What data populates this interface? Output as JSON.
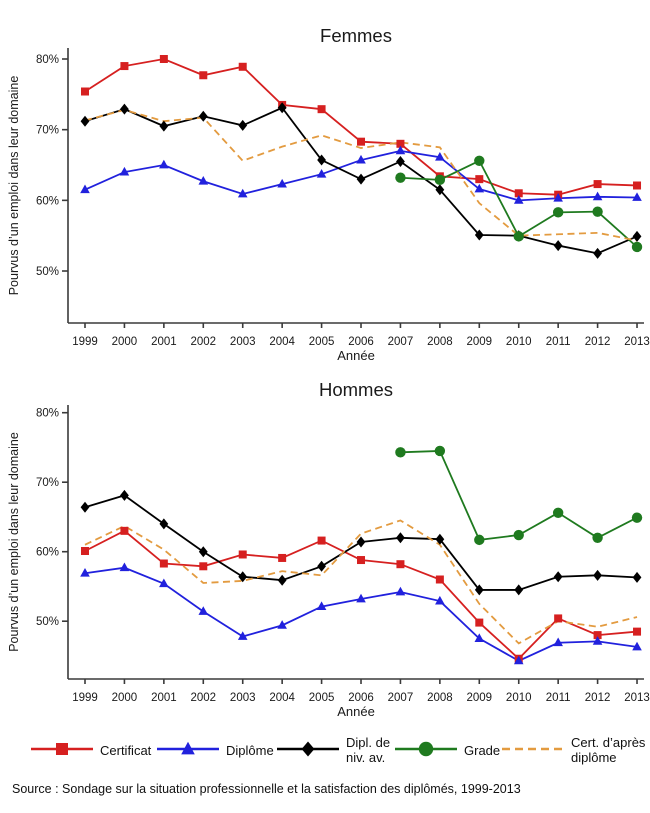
{
  "page": {
    "source_note": "Source : Sondage sur la situation professionnelle et la satisfaction des diplômés, 1999-2013",
    "stray_mark": "’"
  },
  "legend": {
    "items": [
      {
        "label": "Certificat",
        "color": "#d62020",
        "marker": "square",
        "dash": false
      },
      {
        "label": "Diplôme",
        "color": "#2121dd",
        "marker": "triangle",
        "dash": false
      },
      {
        "label": "Dipl. de niv. av.",
        "color": "#000000",
        "marker": "diamond",
        "dash": false
      },
      {
        "label": "Grade",
        "color": "#1f7a1f",
        "marker": "circle",
        "dash": false
      },
      {
        "label": "Cert. d’après diplôme",
        "color": "#e39b40",
        "marker": "none",
        "dash": true
      }
    ]
  },
  "chart_data": [
    {
      "type": "line",
      "title": "Femmes",
      "xlabel": "Année",
      "ylabel": "Pourvus d’un emploi dans leur domaine",
      "categories": [
        "1999",
        "2000",
        "2001",
        "2002",
        "2003",
        "2004",
        "2005",
        "2006",
        "2007",
        "2008",
        "2009",
        "2010",
        "2011",
        "2012",
        "2013"
      ],
      "ylim": [
        42.5,
        81.5
      ],
      "yticks": [
        {
          "value": 50,
          "label": "50%"
        },
        {
          "value": 60,
          "label": "60%"
        },
        {
          "value": 70,
          "label": "70%"
        },
        {
          "value": 80,
          "label": "80%"
        }
      ],
      "grid": false,
      "series": [
        {
          "name": "Certificat",
          "color": "#d62020",
          "marker": "square",
          "dash": false,
          "values": [
            75.4,
            79.0,
            80.0,
            77.7,
            78.9,
            73.5,
            72.9,
            68.3,
            68.0,
            63.4,
            63.0,
            61.0,
            60.8,
            62.3,
            62.1
          ]
        },
        {
          "name": "Diplôme",
          "color": "#2121dd",
          "marker": "triangle",
          "dash": false,
          "values": [
            61.5,
            64.0,
            65.0,
            62.7,
            60.9,
            62.3,
            63.7,
            65.7,
            67.0,
            66.1,
            61.6,
            60.0,
            60.3,
            60.5,
            60.4
          ]
        },
        {
          "name": "Dipl. de niv. av.",
          "color": "#000000",
          "marker": "diamond",
          "dash": false,
          "values": [
            71.2,
            72.9,
            70.5,
            71.9,
            70.6,
            73.1,
            65.7,
            63.0,
            65.5,
            61.5,
            55.1,
            55.0,
            53.6,
            52.5,
            54.9
          ]
        },
        {
          "name": "Grade",
          "color": "#1f7a1f",
          "marker": "circle",
          "dash": false,
          "values": [
            null,
            null,
            null,
            null,
            null,
            null,
            null,
            null,
            63.2,
            62.9,
            65.6,
            54.9,
            58.3,
            58.4,
            53.4
          ]
        },
        {
          "name": "Cert. d’après diplôme",
          "color": "#e39b40",
          "marker": "none",
          "dash": true,
          "values": [
            71.3,
            72.8,
            71.2,
            71.7,
            65.6,
            67.6,
            69.2,
            67.4,
            68.2,
            67.5,
            59.6,
            55.0,
            55.2,
            55.4,
            54.3
          ]
        }
      ]
    },
    {
      "type": "line",
      "title": "Hommes",
      "xlabel": "Année",
      "ylabel": "Pourvus d’un emploi dans leur domaine",
      "categories": [
        "1999",
        "2000",
        "2001",
        "2002",
        "2003",
        "2004",
        "2005",
        "2006",
        "2007",
        "2008",
        "2009",
        "2010",
        "2011",
        "2012",
        "2013"
      ],
      "ylim": [
        41.5,
        81.5
      ],
      "yticks": [
        {
          "value": 50,
          "label": "50%"
        },
        {
          "value": 60,
          "label": "60%"
        },
        {
          "value": 70,
          "label": "70%"
        },
        {
          "value": 80,
          "label": "80%"
        }
      ],
      "grid": false,
      "series": [
        {
          "name": "Certificat",
          "color": "#d62020",
          "marker": "square",
          "dash": false,
          "values": [
            60.1,
            63.0,
            58.3,
            57.9,
            59.6,
            59.1,
            61.6,
            58.8,
            58.2,
            56.0,
            49.8,
            44.6,
            50.4,
            48.0,
            48.5
          ]
        },
        {
          "name": "Diplôme",
          "color": "#2121dd",
          "marker": "triangle",
          "dash": false,
          "values": [
            56.9,
            57.7,
            55.4,
            51.4,
            47.8,
            49.4,
            52.1,
            53.2,
            54.2,
            52.9,
            47.5,
            44.3,
            46.9,
            47.1,
            46.3
          ]
        },
        {
          "name": "Dipl. de niv. av.",
          "color": "#000000",
          "marker": "diamond",
          "dash": false,
          "values": [
            66.4,
            68.1,
            64.0,
            60.0,
            56.4,
            55.9,
            57.9,
            61.4,
            62.0,
            61.8,
            54.5,
            54.5,
            56.4,
            56.6,
            56.3
          ]
        },
        {
          "name": "Grade",
          "color": "#1f7a1f",
          "marker": "circle",
          "dash": false,
          "values": [
            null,
            null,
            null,
            null,
            null,
            null,
            null,
            null,
            74.3,
            74.5,
            61.7,
            62.4,
            65.6,
            62.0,
            64.9
          ]
        },
        {
          "name": "Cert. d’après diplôme",
          "color": "#e39b40",
          "marker": "none",
          "dash": true,
          "values": [
            61.0,
            63.7,
            60.3,
            55.5,
            55.8,
            57.2,
            56.6,
            62.6,
            64.5,
            61.0,
            52.5,
            46.8,
            50.0,
            49.2,
            50.6
          ]
        }
      ]
    }
  ]
}
